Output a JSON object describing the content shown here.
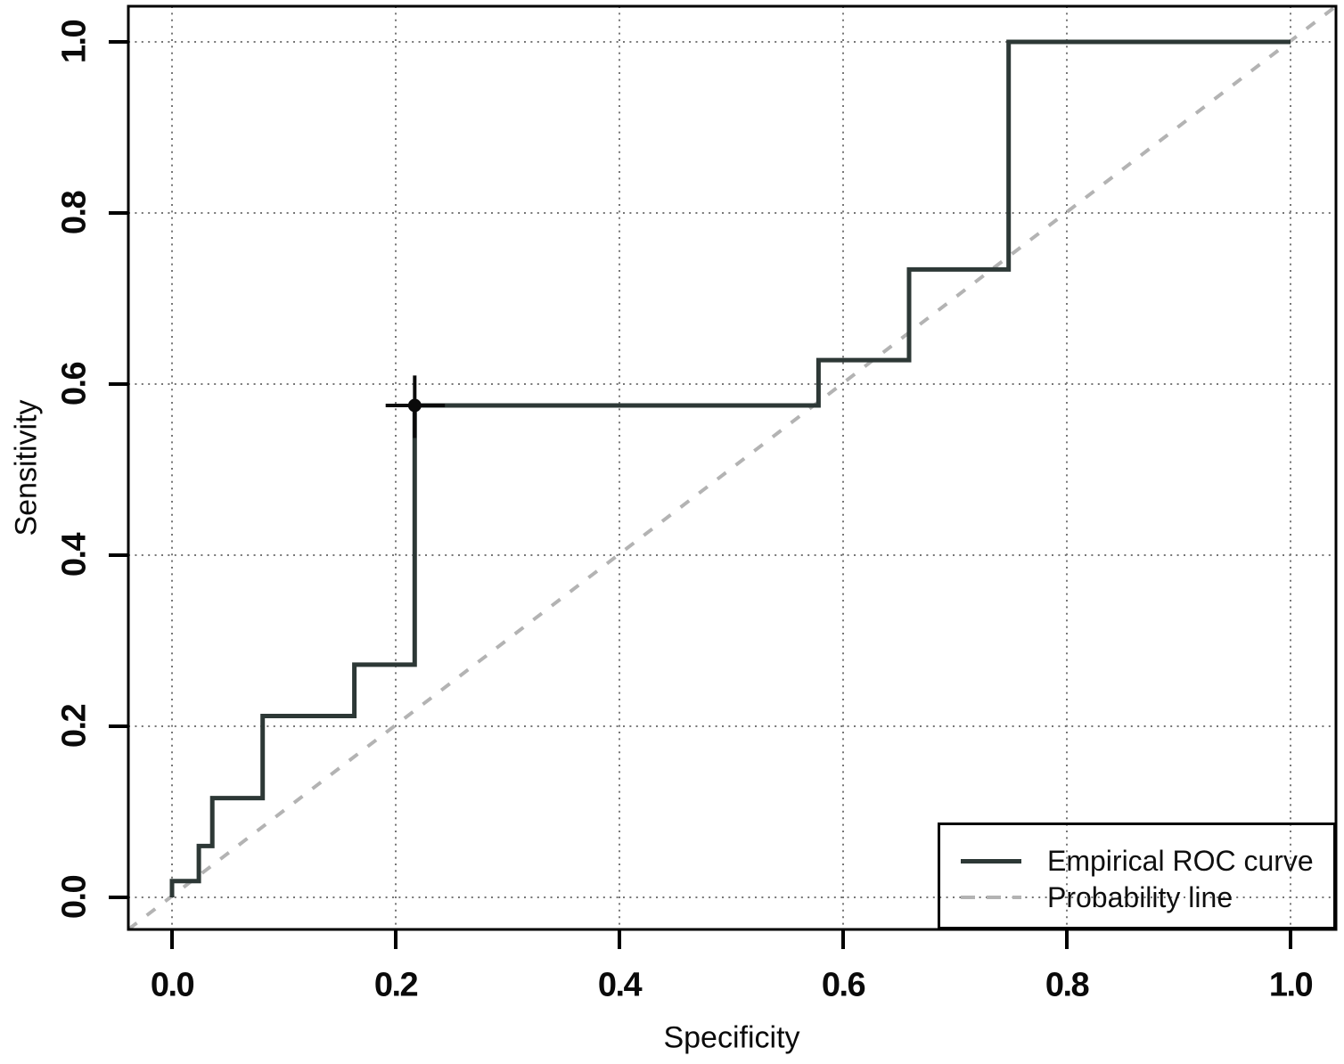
{
  "chart_data": {
    "type": "line",
    "subtype": "empirical-roc-step-plot",
    "title": "",
    "xlabel": "Specificity",
    "ylabel": "Sensitivity",
    "xlim": [
      0,
      1
    ],
    "ylim": [
      0,
      1
    ],
    "x_ticks": [
      "0.0",
      "0.2",
      "0.4",
      "0.6",
      "0.8",
      "1.0"
    ],
    "y_ticks": [
      "0.0",
      "0.2",
      "0.4",
      "0.6",
      "0.8",
      "1.0"
    ],
    "grid": "dotted-at-ticks-both-axes",
    "legend_position": "bottom-right",
    "series": [
      {
        "name": "Empirical ROC curve",
        "style": "solid-step",
        "color": "#2d3836",
        "points": [
          [
            0.0,
            0.0
          ],
          [
            0.0,
            0.019
          ],
          [
            0.024,
            0.019
          ],
          [
            0.024,
            0.06
          ],
          [
            0.036,
            0.06
          ],
          [
            0.036,
            0.116
          ],
          [
            0.081,
            0.116
          ],
          [
            0.081,
            0.212
          ],
          [
            0.163,
            0.212
          ],
          [
            0.163,
            0.272
          ],
          [
            0.217,
            0.272
          ],
          [
            0.217,
            0.575
          ],
          [
            0.578,
            0.575
          ],
          [
            0.578,
            0.628
          ],
          [
            0.659,
            0.628
          ],
          [
            0.659,
            0.734
          ],
          [
            0.748,
            0.734
          ],
          [
            0.748,
            1.0
          ],
          [
            1.0,
            1.0
          ]
        ]
      },
      {
        "name": "Probability line",
        "style": "dashed-diagonal",
        "color": "#b3b3b3",
        "points": [
          [
            0,
            0
          ],
          [
            1,
            1
          ]
        ]
      }
    ],
    "marked_point": {
      "x": 0.217,
      "y": 0.575,
      "x_interval": [
        0.191,
        0.244
      ],
      "y_interval": [
        0.537,
        0.61
      ],
      "marker": "filled-circle-with-crosshair",
      "color": "#0a0a0a"
    }
  },
  "legend": {
    "entries": [
      {
        "label": "Empirical ROC curve",
        "swatch": "solid-line",
        "color": "#2d3836"
      },
      {
        "label": "Probability line",
        "swatch": "dashed-line",
        "color": "#b3b3b3"
      }
    ]
  },
  "colors": {
    "background": "#ffffff",
    "axis_box": "#000000",
    "grid": "#767676",
    "text": "#0a0a0a"
  }
}
